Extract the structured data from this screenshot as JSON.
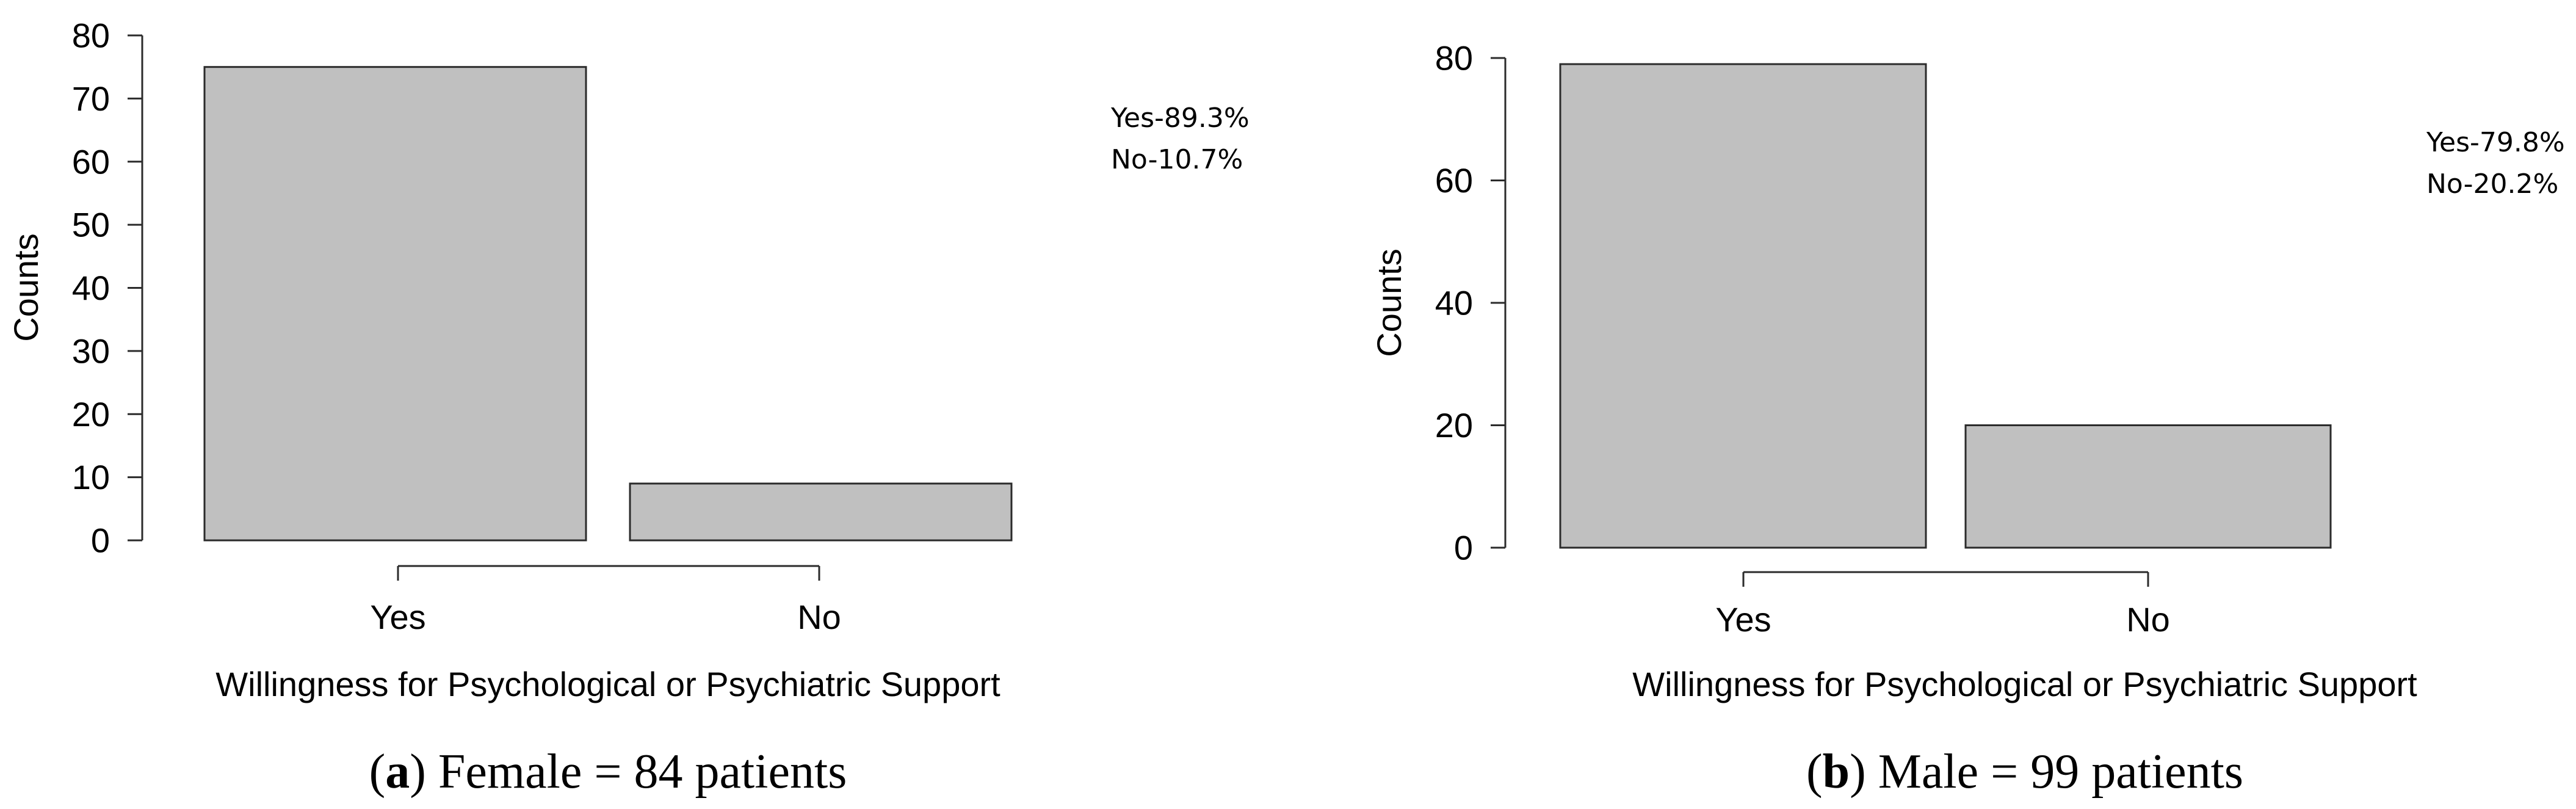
{
  "chart_data": [
    {
      "type": "bar",
      "panel_letter": "a",
      "caption": " Female = 84 patients",
      "categories": [
        "Yes",
        "No"
      ],
      "values": [
        75,
        9
      ],
      "xlabel": "Willingness for Psychological or Psychiatric Support",
      "ylabel": "Counts",
      "ylim": [
        0,
        80
      ],
      "yticks": [
        0,
        10,
        20,
        30,
        40,
        50,
        60,
        70,
        80
      ],
      "annotations": [
        "Yes-89.3%",
        "No-10.7%"
      ],
      "grid": false,
      "bar_color": "#c0c0c0"
    },
    {
      "type": "bar",
      "panel_letter": "b",
      "caption": " Male = 99 patients",
      "categories": [
        "Yes",
        "No"
      ],
      "values": [
        79,
        20
      ],
      "xlabel": "Willingness for Psychological or Psychiatric Support",
      "ylabel": "Counts",
      "ylim": [
        0,
        80
      ],
      "yticks": [
        0,
        20,
        40,
        60,
        80
      ],
      "annotations": [
        "Yes-79.8%",
        "No-20.2%"
      ],
      "grid": false,
      "bar_color": "#c0c0c0"
    }
  ]
}
